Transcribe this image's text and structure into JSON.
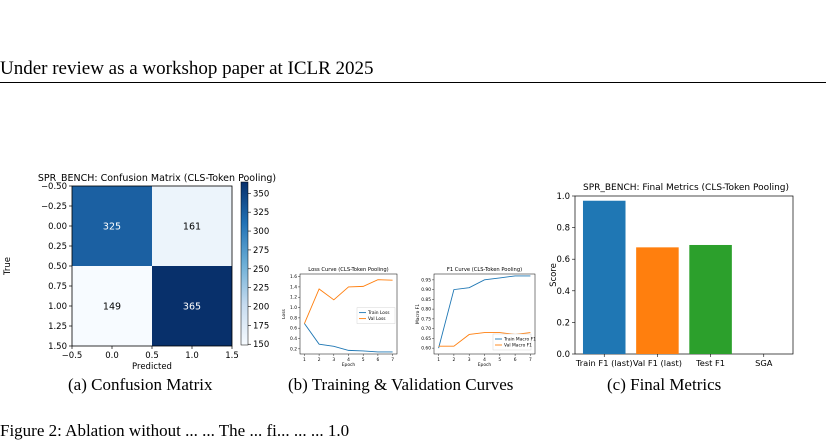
{
  "header": {
    "text": "Under review as a workshop paper at ICLR 2025"
  },
  "captions": {
    "a": "(a)  Confusion Matrix",
    "b": "(b)  Training & Validation Curves",
    "c": "(c)  Final Metrics"
  },
  "bottom_text": "Figure 2: Ablation without ... ... The ... fi... ... ... 1.0",
  "colors": {
    "cm_dark": "#08306b",
    "cm_mid": "#1a69ac",
    "cm_light": "#eef4fb",
    "cm_lighter": "#f5f9fe",
    "blue": "#1f77b4",
    "orange": "#ff7f0e",
    "green": "#2ca02c"
  },
  "chart_data": [
    {
      "type": "heatmap",
      "title": "SPR_BENCH: Confusion Matrix (CLS-Token Pooling)",
      "xlabel": "Predicted",
      "ylabel": "True",
      "matrix": [
        [
          325,
          161
        ],
        [
          149,
          365
        ]
      ],
      "xticks": [
        "−0.5",
        "0.0",
        "0.5",
        "1.0",
        "1.5"
      ],
      "yticks": [
        "−0.50",
        "−0.25",
        "0.00",
        "0.25",
        "0.50",
        "0.75",
        "1.00",
        "1.25",
        "1.50"
      ],
      "colorbar_ticks": [
        "350",
        "325",
        "300",
        "275",
        "250",
        "225",
        "200",
        "175",
        "150"
      ],
      "colorbar_range": [
        149,
        365
      ],
      "grid": false
    },
    {
      "type": "line",
      "title": "Loss Curve (CLS-Token Pooling)",
      "xlabel": "Epoch",
      "ylabel": "Loss",
      "x": [
        1,
        2,
        3,
        4,
        5,
        6,
        7
      ],
      "xlim": [
        0.7,
        7.3
      ],
      "ylim": [
        0.1,
        1.65
      ],
      "yticks": [
        "0.2",
        "0.4",
        "0.6",
        "0.8",
        "1.0",
        "1.2",
        "1.4",
        "1.6"
      ],
      "xticks": [
        "1",
        "2",
        "3",
        "4",
        "5",
        "6",
        "7"
      ],
      "legend": "right",
      "series": [
        {
          "name": "Train Loss",
          "values": [
            0.69,
            0.29,
            0.25,
            0.17,
            0.16,
            0.14,
            0.14
          ]
        },
        {
          "name": "Val Loss",
          "values": [
            0.69,
            1.36,
            1.15,
            1.4,
            1.41,
            1.54,
            1.53
          ]
        }
      ]
    },
    {
      "type": "line",
      "title": "F1 Curve (CLS-Token Pooling)",
      "xlabel": "Epoch",
      "ylabel": "Macro F1",
      "x": [
        1,
        2,
        3,
        4,
        5,
        6,
        7
      ],
      "xlim": [
        0.7,
        7.3
      ],
      "ylim": [
        0.57,
        0.98
      ],
      "yticks": [
        "0.60",
        "0.65",
        "0.70",
        "0.75",
        "0.80",
        "0.85",
        "0.90",
        "0.95"
      ],
      "xticks": [
        "1",
        "2",
        "3",
        "4",
        "5",
        "6",
        "7"
      ],
      "legend": "bottom-right",
      "series": [
        {
          "name": "Train Macro F1",
          "values": [
            0.6,
            0.9,
            0.91,
            0.95,
            0.96,
            0.97,
            0.97
          ]
        },
        {
          "name": "Val Macro F1",
          "values": [
            0.61,
            0.61,
            0.67,
            0.68,
            0.68,
            0.67,
            0.68
          ]
        }
      ]
    },
    {
      "type": "bar",
      "title": "SPR_BENCH: Final Metrics (CLS-Token Pooling)",
      "ylabel": "Score",
      "categories": [
        "Train F1 (last)",
        "Val F1 (last)",
        "Test F1",
        "SGA"
      ],
      "values": [
        0.97,
        0.675,
        0.69,
        0.0
      ],
      "ylim": [
        0,
        1.0
      ],
      "yticks": [
        "0.0",
        "0.2",
        "0.4",
        "0.6",
        "0.8",
        "1.0"
      ],
      "bar_colors": [
        "#1f77b4",
        "#ff7f0e",
        "#2ca02c",
        "#d62728"
      ]
    }
  ]
}
